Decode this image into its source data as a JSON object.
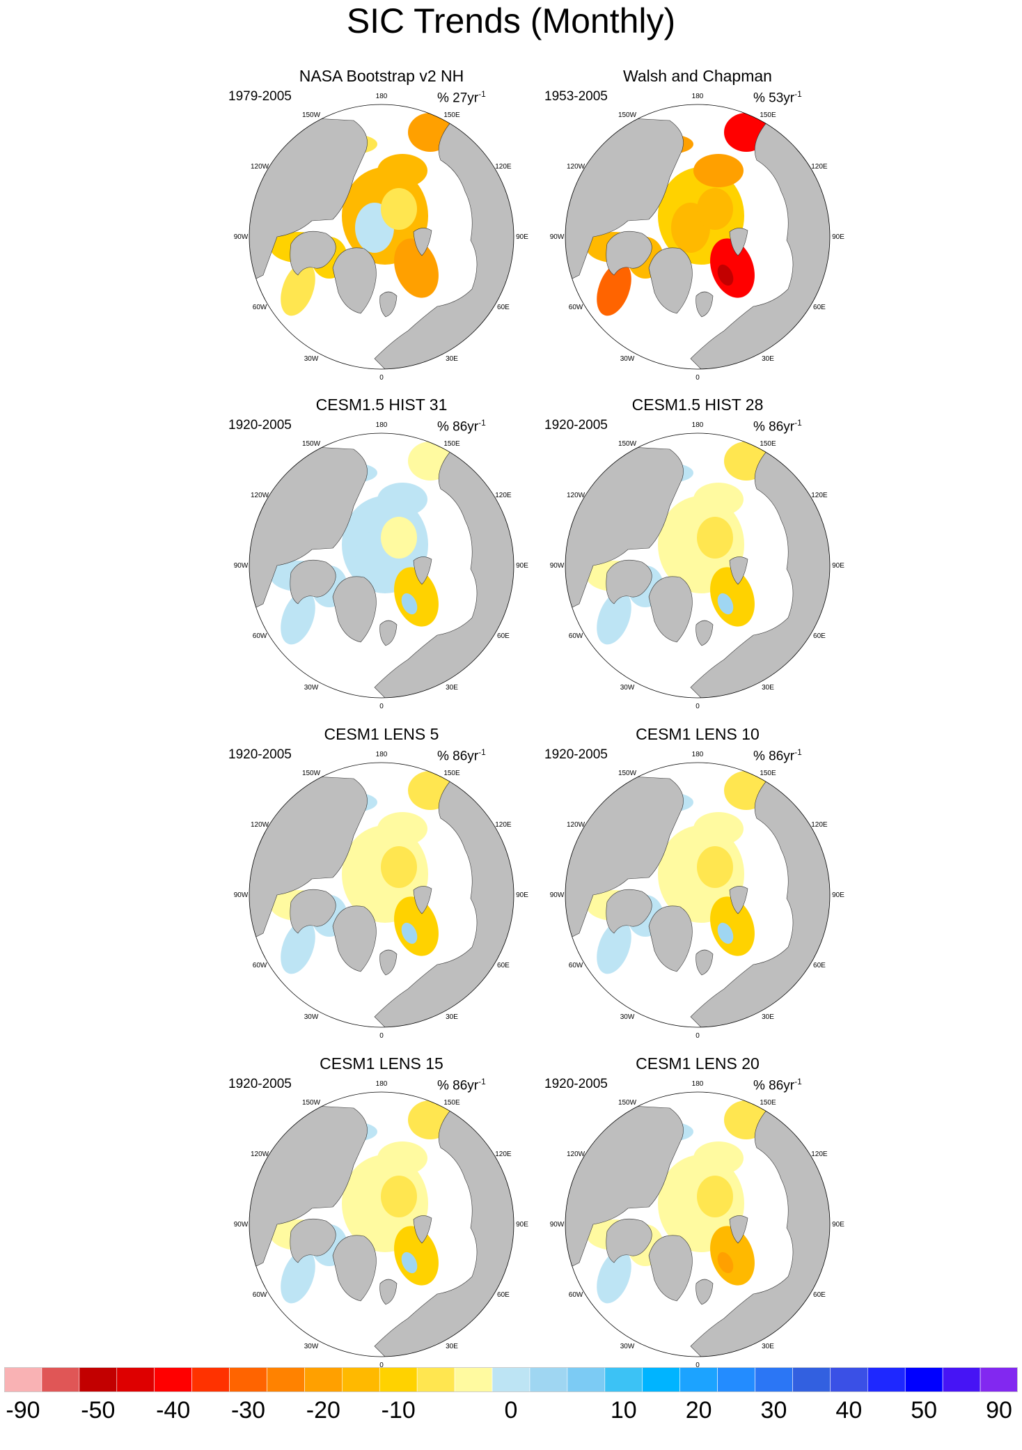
{
  "title": "SIC Trends (Monthly)",
  "colors": {
    "land": "#bebebe",
    "coast": "#333333",
    "ocean": "#ffffff"
  },
  "lon_labels": [
    "180",
    "150E",
    "120E",
    "90E",
    "60E",
    "30E",
    "0",
    "30W",
    "60W",
    "90W",
    "120W",
    "150W"
  ],
  "panels": [
    {
      "title": "NASA Bootstrap v2 NH",
      "period": "1979-2005",
      "units": "% 27yr",
      "units_exp": "-1",
      "pattern": "strong-decline"
    },
    {
      "title": "Walsh and Chapman",
      "period": "1953-2005",
      "units": "% 53yr",
      "units_exp": "-1",
      "pattern": "strong-decline-red"
    },
    {
      "title": "CESM1.5 HIST 31",
      "period": "1920-2005",
      "units": "% 86yr",
      "units_exp": "-1",
      "pattern": "mostly-increase"
    },
    {
      "title": "CESM1.5 HIST 28",
      "period": "1920-2005",
      "units": "% 86yr",
      "units_exp": "-1",
      "pattern": "weak-decline"
    },
    {
      "title": "CESM1 LENS 5",
      "period": "1920-2005",
      "units": "% 86yr",
      "units_exp": "-1",
      "pattern": "weak-decline"
    },
    {
      "title": "CESM1 LENS 10",
      "period": "1920-2005",
      "units": "% 86yr",
      "units_exp": "-1",
      "pattern": "weak-decline"
    },
    {
      "title": "CESM1 LENS 15",
      "period": "1920-2005",
      "units": "% 86yr",
      "units_exp": "-1",
      "pattern": "weak-decline"
    },
    {
      "title": "CESM1 LENS 20",
      "period": "1920-2005",
      "units": "% 86yr",
      "units_exp": "-1",
      "pattern": "moderate-decline"
    }
  ],
  "colorbar": {
    "colors": [
      "#f9b2b4",
      "#e05656",
      "#c20000",
      "#de0000",
      "#ff0000",
      "#ff3200",
      "#ff6400",
      "#ff8200",
      "#ffa000",
      "#ffb900",
      "#ffd200",
      "#ffe650",
      "#fffaa0",
      "#bde4f4",
      "#9fd6f2",
      "#7ccbf4",
      "#3cc2f5",
      "#00b4ff",
      "#1ca3ff",
      "#238cff",
      "#2b76f5",
      "#3260e0",
      "#3a50e6",
      "#1e28ff",
      "#0000ff",
      "#4614f5",
      "#8228f0"
    ],
    "labels": [
      "-90",
      "-50",
      "-40",
      "-30",
      "-20",
      "-10",
      "0",
      "10",
      "20",
      "30",
      "40",
      "50",
      "90"
    ]
  }
}
